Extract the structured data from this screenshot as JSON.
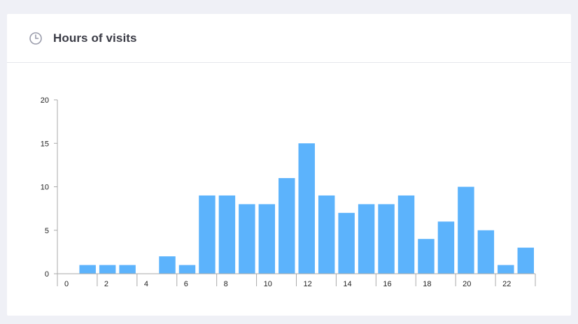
{
  "card": {
    "title": "Hours of visits",
    "icon": "clock-icon"
  },
  "colors": {
    "bar": "#5cb3fc",
    "axis": "#aaaaaa",
    "title": "#3a3b45",
    "background": "#eff0f6"
  },
  "chart_data": {
    "type": "bar",
    "title": "",
    "xlabel": "",
    "ylabel": "",
    "categories": [
      0,
      1,
      2,
      3,
      4,
      5,
      6,
      7,
      8,
      9,
      10,
      11,
      12,
      13,
      14,
      15,
      16,
      17,
      18,
      19,
      20,
      21,
      22,
      23
    ],
    "values": [
      0,
      1,
      1,
      1,
      0,
      2,
      1,
      9,
      9,
      8,
      8,
      11,
      15,
      9,
      7,
      8,
      8,
      9,
      4,
      6,
      10,
      5,
      1,
      3
    ],
    "x_tick_labels": [
      "0",
      "2",
      "4",
      "6",
      "8",
      "10",
      "12",
      "14",
      "16",
      "18",
      "20",
      "22"
    ],
    "y_ticks": [
      0,
      5,
      10,
      15,
      20
    ],
    "ylim": [
      0,
      20
    ],
    "grid": false,
    "legend": "none"
  }
}
